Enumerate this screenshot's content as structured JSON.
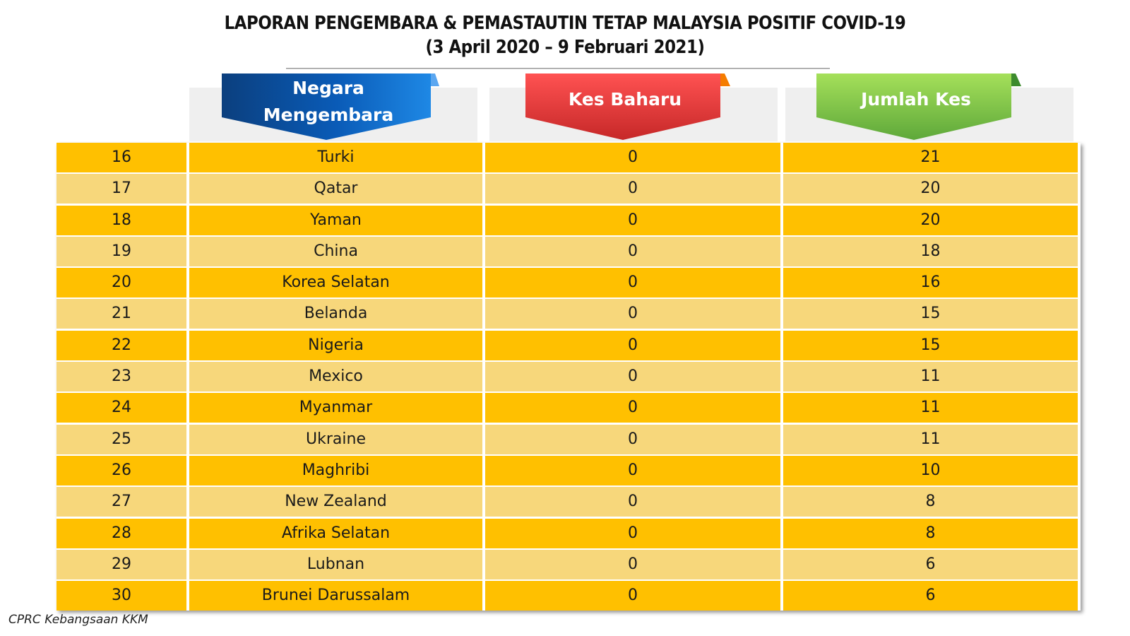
{
  "title": {
    "line1": "LAPORAN PENGEMBARA & PEMASTAUTIN TETAP MALAYSIA POSITIF COVID-19",
    "line2": "(3 April 2020 – 9 Februari 2021)"
  },
  "headers": {
    "country": [
      "Negara",
      "Mengembara"
    ],
    "new_cases": "Kes Baharu",
    "total_cases": "Jumlah Kes"
  },
  "colors": {
    "header_blue": "#1565c0",
    "header_red": "#e53935",
    "header_green": "#7cc142",
    "row_dark": "#ffc000",
    "row_light": "#f7d77b"
  },
  "rows": [
    {
      "no": "16",
      "country": "Turki",
      "new": "0",
      "total": "21"
    },
    {
      "no": "17",
      "country": "Qatar",
      "new": "0",
      "total": "20"
    },
    {
      "no": "18",
      "country": "Yaman",
      "new": "0",
      "total": "20"
    },
    {
      "no": "19",
      "country": "China",
      "new": "0",
      "total": "18"
    },
    {
      "no": "20",
      "country": "Korea Selatan",
      "new": "0",
      "total": "16"
    },
    {
      "no": "21",
      "country": "Belanda",
      "new": "0",
      "total": "15"
    },
    {
      "no": "22",
      "country": "Nigeria",
      "new": "0",
      "total": "15"
    },
    {
      "no": "23",
      "country": "Mexico",
      "new": "0",
      "total": "11"
    },
    {
      "no": "24",
      "country": "Myanmar",
      "new": "0",
      "total": "11"
    },
    {
      "no": "25",
      "country": "Ukraine",
      "new": "0",
      "total": "11"
    },
    {
      "no": "26",
      "country": "Maghribi",
      "new": "0",
      "total": "10"
    },
    {
      "no": "27",
      "country": "New Zealand",
      "new": "0",
      "total": "8"
    },
    {
      "no": "28",
      "country": "Afrika Selatan",
      "new": "0",
      "total": "8"
    },
    {
      "no": "29",
      "country": "Lubnan",
      "new": "0",
      "total": "6"
    },
    {
      "no": "30",
      "country": "Brunei Darussalam",
      "new": "0",
      "total": "6"
    }
  ],
  "footer": "CPRC Kebangsaan KKM"
}
